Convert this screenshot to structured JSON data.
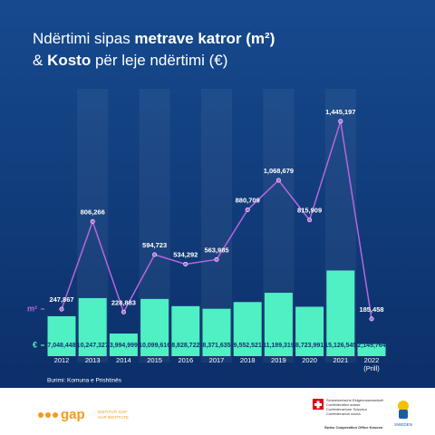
{
  "chart_data": {
    "type": "bar-line",
    "title_part1": "Ndërtimi sipas ",
    "title_part2": "metrave katror (m²)",
    "title_part3": "& ",
    "title_part4": "Kosto",
    "title_part5": " për leje ndërtimi (€)",
    "source": "Burimi: Komuna e Prishtinës",
    "categories": [
      "2012",
      "2013",
      "2014",
      "2015",
      "2016",
      "2017",
      "2018",
      "2019",
      "2020",
      "2021",
      "2022"
    ],
    "last_category_note": "(Prill)",
    "ylim": [
      0,
      16000000
    ],
    "y2lim": [
      0,
      1600000
    ],
    "series": [
      {
        "name": "€",
        "color": "#4ff0c4",
        "values": [
          7048448,
          10247327,
          3994999,
          10099616,
          8828722,
          8371635,
          9552521,
          11189319,
          8723991,
          15126545,
          2145764
        ],
        "value_labels": [
          "7,048,448",
          "10,247,327",
          "3,994,999",
          "10,099,616",
          "8,828,722",
          "8,371,635",
          "9,552,521",
          "11,189,319",
          "8,723,991",
          "15,126,545",
          "2,145,764"
        ]
      },
      {
        "name": "m²",
        "color": "#b866dc",
        "axis": "y2",
        "values": [
          247867,
          806266,
          228883,
          594723,
          534292,
          563985,
          880709,
          1068679,
          815909,
          1445197,
          185458
        ],
        "value_labels": [
          "247,867",
          "806,266",
          "228,883",
          "594,723",
          "534,292",
          "563,985",
          "880,709",
          "1,068,679",
          "815,909",
          "1,445,197",
          "185,458"
        ]
      }
    ]
  },
  "footer": {
    "gap_logo": "gap",
    "gap_line1": "INSTITUTI GAP",
    "gap_line2": "GAP INSTITUTE",
    "swiss_lines": [
      "Schweizerische Eidgenossenschaft",
      "Confédération suisse",
      "Confederazione Svizzera",
      "Confederaziun svizra"
    ],
    "swiss_office": "Swiss Cooperation Office Kosovo",
    "sweden": "SWEDEN"
  }
}
